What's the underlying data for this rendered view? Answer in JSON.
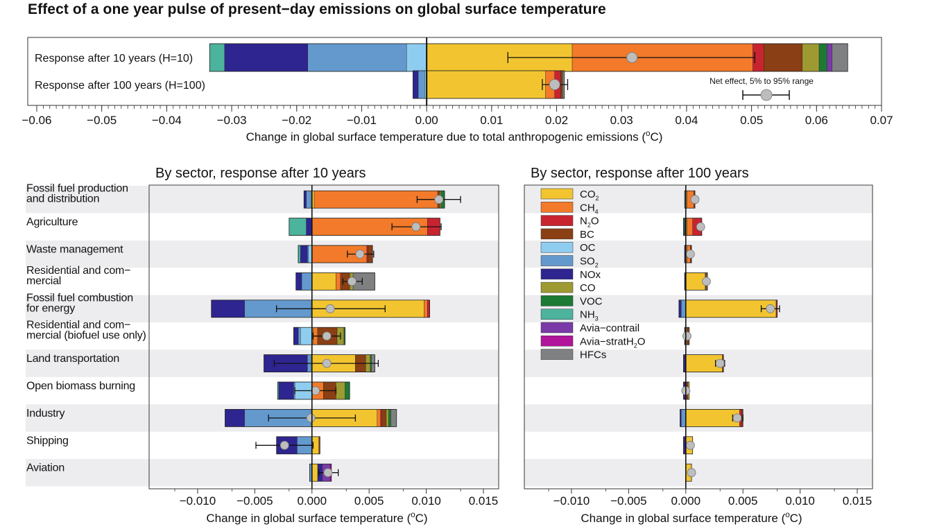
{
  "title": "Effect of a one year pulse of present−day emissions on global surface temperature",
  "colors": {
    "CO2": "#f2c530",
    "CH4": "#f27a2a",
    "N2O": "#c8242f",
    "BC": "#8a3f14",
    "OC": "#8fcdf0",
    "SO2": "#6399cd",
    "NOx": "#2e2590",
    "CO": "#9e9a32",
    "VOC": "#1c7a35",
    "NH3": "#4cb39d",
    "Avia-contrail": "#7a3aa8",
    "Avia-stratH2O": "#b0159a",
    "HFCs": "#7f8081",
    "band": "#ededf0",
    "marker": "#bdbdbd"
  },
  "chart_data": [
    {
      "type": "bar",
      "subtype": "stacked-horizontal",
      "title": "",
      "xlabel": "Change in global surface temperature due to total anthropogenic emissions (°C)",
      "xlim": [
        -0.06,
        0.07
      ],
      "xticks": [
        "−0.06",
        "−0.05",
        "−0.04",
        "−0.03",
        "−0.02",
        "−0.01",
        "0.00",
        "0.01",
        "0.02",
        "0.03",
        "0.04",
        "0.05",
        "0.06",
        "0.07"
      ],
      "xtick_values": [
        -0.06,
        -0.05,
        -0.04,
        -0.03,
        -0.02,
        -0.01,
        0,
        0.01,
        0.02,
        0.03,
        0.04,
        0.05,
        0.06,
        0.07
      ],
      "legend_note": "Net effect, 5% to 95% range",
      "rows": [
        {
          "label": "Response after 10 years (H=10)",
          "negative": [
            [
              "OC",
              0.0031
            ],
            [
              "SO2",
              0.0152
            ],
            [
              "NOx",
              0.0128
            ],
            [
              "NH3",
              0.0023
            ]
          ],
          "positive": [
            [
              "CO2",
              0.0224
            ],
            [
              "CH4",
              0.0278
            ],
            [
              "N2O",
              0.0017
            ],
            [
              "BC",
              0.0059
            ],
            [
              "CO",
              0.0026
            ],
            [
              "VOC",
              0.0012
            ],
            [
              "Avia-contrail",
              0.0008
            ],
            [
              "HFCs",
              0.0024
            ]
          ],
          "net": 0.0316,
          "range": [
            0.0125,
            0.0505
          ]
        },
        {
          "label": "Response after 100 years (H=100)",
          "negative": [
            [
              "OC",
              0.0003
            ],
            [
              "SO2",
              0.001
            ],
            [
              "NOx",
              0.0008
            ]
          ],
          "positive": [
            [
              "CO2",
              0.0183
            ],
            [
              "CH4",
              0.0014
            ],
            [
              "N2O",
              0.0009
            ],
            [
              "BC",
              0.0003
            ],
            [
              "HFCs",
              0.0003
            ]
          ],
          "net": 0.0197,
          "range": [
            0.0178,
            0.0217
          ]
        }
      ]
    },
    {
      "type": "bar",
      "subtype": "stacked-horizontal",
      "title": "By sector, response after 10 years",
      "xlabel": "Change in global surface temperature (°C)",
      "xlim": [
        -0.012,
        0.015
      ],
      "xticks": [
        "−0.010",
        "−0.005",
        "0.000",
        "0.005",
        "0.010",
        "0.015"
      ],
      "xtick_values": [
        -0.01,
        -0.005,
        0,
        0.005,
        0.01,
        0.015
      ],
      "rows": [
        {
          "label": "Fossil fuel production\nand distribution",
          "negative": [
            [
              "OC",
              0.0001
            ],
            [
              "SO2",
              0.0004
            ],
            [
              "NOx",
              0.0002
            ]
          ],
          "positive": [
            [
              "CO2",
              0.0002
            ],
            [
              "CH4",
              0.0108
            ],
            [
              "BC",
              0.0002
            ],
            [
              "CO",
              0.0001
            ],
            [
              "VOC",
              0.0003
            ]
          ],
          "net": 0.0111,
          "range": [
            0.0092,
            0.013
          ]
        },
        {
          "label": "Agriculture",
          "negative": [
            [
              "NOx",
              0.0005
            ],
            [
              "NH3",
              0.0015
            ]
          ],
          "positive": [
            [
              "CH4",
              0.0101
            ],
            [
              "N2O",
              0.0011
            ]
          ],
          "net": 0.0091,
          "range": [
            0.007,
            0.0113
          ]
        },
        {
          "label": "Waste management",
          "negative": [
            [
              "OC",
              0.0003
            ],
            [
              "SO2",
              0.0001
            ],
            [
              "NOx",
              0.0006
            ],
            [
              "NH3",
              0.0002
            ]
          ],
          "positive": [
            [
              "CH4",
              0.0048
            ],
            [
              "N2O",
              0.0001
            ],
            [
              "BC",
              0.0004
            ]
          ],
          "net": 0.0042,
          "range": [
            0.0031,
            0.0054
          ]
        },
        {
          "label": "Residential and com−\nmercial",
          "negative": [
            [
              "SO2",
              0.0009
            ],
            [
              "NOx",
              0.0005
            ]
          ],
          "positive": [
            [
              "CO2",
              0.0021
            ],
            [
              "CH4",
              0.0004
            ],
            [
              "BC",
              0.0008
            ],
            [
              "CO",
              0.0003
            ],
            [
              "HFCs",
              0.0019
            ]
          ],
          "net": 0.0035,
          "range": [
            0.0027,
            0.0044
          ]
        },
        {
          "label": "Fossil fuel combustion\nfor energy",
          "negative": [
            [
              "OC",
              0.0001
            ],
            [
              "SO2",
              0.0058
            ],
            [
              "NOx",
              0.0029
            ]
          ],
          "positive": [
            [
              "CO2",
              0.0098
            ],
            [
              "CH4",
              0.0003
            ],
            [
              "N2O",
              0.0002
            ]
          ],
          "net": 0.0016,
          "range": [
            -0.0031,
            0.0064
          ]
        },
        {
          "label": "Residential and com−\nmercial (biofuel use only)",
          "negative": [
            [
              "OC",
              0.001
            ],
            [
              "SO2",
              0.0002
            ],
            [
              "NOx",
              0.0004
            ]
          ],
          "positive": [
            [
              "CO2",
              0.0001
            ],
            [
              "CH4",
              0.0004
            ],
            [
              "BC",
              0.0017
            ],
            [
              "CO",
              0.0006
            ],
            [
              "VOC",
              0.0001
            ]
          ],
          "net": 0.0013,
          "range": [
            0.0001,
            0.0025
          ]
        },
        {
          "label": "Land transportation",
          "negative": [
            [
              "OC",
              0.0001
            ],
            [
              "SO2",
              0.0003
            ],
            [
              "NOx",
              0.0038
            ]
          ],
          "positive": [
            [
              "CO2",
              0.0038
            ],
            [
              "BC",
              0.0009
            ],
            [
              "CO",
              0.0004
            ],
            [
              "VOC",
              0.0001
            ],
            [
              "HFCs",
              0.0003
            ]
          ],
          "net": 0.0013,
          "range": [
            -0.0033,
            0.0058
          ]
        },
        {
          "label": "Open biomass burning",
          "negative": [
            [
              "OC",
              0.0015
            ],
            [
              "SO2",
              0.0001
            ],
            [
              "NOx",
              0.0013
            ],
            [
              "NH3",
              0.0001
            ]
          ],
          "positive": [
            [
              "CH4",
              0.001
            ],
            [
              "BC",
              0.0011
            ],
            [
              "CO",
              0.0008
            ],
            [
              "VOC",
              0.0004
            ]
          ],
          "net": 0.0003,
          "range": [
            -0.0015,
            0.0021
          ]
        },
        {
          "label": "Industry",
          "negative": [
            [
              "OC",
              0.0001
            ],
            [
              "SO2",
              0.0058
            ],
            [
              "NOx",
              0.0017
            ]
          ],
          "positive": [
            [
              "CO2",
              0.0057
            ],
            [
              "CH4",
              0.0003
            ],
            [
              "N2O",
              0.0001
            ],
            [
              "BC",
              0.0004
            ],
            [
              "CO",
              0.0002
            ],
            [
              "VOC",
              0.0002
            ],
            [
              "HFCs",
              0.0005
            ]
          ],
          "net": -0.0001,
          "range": [
            -0.0038,
            0.0038
          ]
        },
        {
          "label": "Shipping",
          "negative": [
            [
              "SO2",
              0.0013
            ],
            [
              "NOx",
              0.0018
            ]
          ],
          "positive": [
            [
              "CO2",
              0.0006
            ],
            [
              "BC",
              0.0001
            ]
          ],
          "net": -0.0024,
          "range": [
            -0.0049,
            0.0001
          ]
        },
        {
          "label": "Aviation",
          "negative": [
            [
              "SO2",
              0.0002
            ]
          ],
          "positive": [
            [
              "CO2",
              0.0005
            ],
            [
              "NOx",
              0.0004
            ],
            [
              "Avia-contrail",
              0.0007
            ],
            [
              "Avia-stratH2O",
              0.0001
            ]
          ],
          "net": 0.0014,
          "range": [
            0.0006,
            0.0023
          ]
        }
      ]
    },
    {
      "type": "bar",
      "subtype": "stacked-horizontal",
      "title": "By sector, response after 100 years",
      "xlabel": "Change in global surface temperature (°C)",
      "xlim": [
        -0.012,
        0.015
      ],
      "xticks": [
        "−0.010",
        "−0.005",
        "0.000",
        "0.005",
        "0.010",
        "0.015"
      ],
      "xtick_values": [
        -0.01,
        -0.005,
        0,
        0.005,
        0.01,
        0.015
      ],
      "legend": [
        {
          "key": "CO2",
          "label": "CO",
          "sub": "2"
        },
        {
          "key": "CH4",
          "label": "CH",
          "sub": "4"
        },
        {
          "key": "N2O",
          "label": "N",
          "sub": "2",
          "after": "O"
        },
        {
          "key": "BC",
          "label": "BC"
        },
        {
          "key": "OC",
          "label": "OC"
        },
        {
          "key": "SO2",
          "label": "SO",
          "sub": "2"
        },
        {
          "key": "NOx",
          "label": "NOx"
        },
        {
          "key": "CO",
          "label": "CO"
        },
        {
          "key": "VOC",
          "label": "VOC"
        },
        {
          "key": "NH3",
          "label": "NH",
          "sub": "3"
        },
        {
          "key": "Avia-contrail",
          "label": "Avia−contrail"
        },
        {
          "key": "Avia-stratH2O",
          "label": "Avia−stratH",
          "sub": "2",
          "after": "O"
        },
        {
          "key": "HFCs",
          "label": "HFCs"
        }
      ],
      "rows": [
        {
          "negative": [
            [
              "SO2",
              0.0001
            ]
          ],
          "positive": [
            [
              "CO2",
              0.0001
            ],
            [
              "CH4",
              0.0006
            ],
            [
              "BC",
              0.0001
            ]
          ],
          "net": 0.0008
        },
        {
          "negative": [
            [
              "NOx",
              0.0001
            ],
            [
              "VOC",
              0.0001
            ]
          ],
          "positive": [
            [
              "CO2",
              0.0001
            ],
            [
              "CH4",
              0.0005
            ],
            [
              "N2O",
              0.0008
            ]
          ],
          "net": 0.0013
        },
        {
          "negative": [
            [
              "NOx",
              0.0001
            ]
          ],
          "positive": [
            [
              "CO2",
              0.0001
            ],
            [
              "CH4",
              0.0003
            ],
            [
              "BC",
              0.0001
            ]
          ],
          "net": 0.0004
        },
        {
          "negative": [
            [
              "NOx",
              0.0001
            ]
          ],
          "positive": [
            [
              "CO2",
              0.0017
            ],
            [
              "BC",
              0.0001
            ],
            [
              "HFCs",
              0.0001
            ]
          ],
          "net": 0.0018
        },
        {
          "negative": [
            [
              "SO2",
              0.0004
            ],
            [
              "NOx",
              0.0002
            ]
          ],
          "positive": [
            [
              "CO2",
              0.0079
            ],
            [
              "N2O",
              0.0001
            ]
          ],
          "net": 0.0074,
          "range": [
            0.0066,
            0.0082
          ]
        },
        {
          "negative": [
            [
              "NOx",
              0.0001
            ]
          ],
          "positive": [
            [
              "CO2",
              0.0001
            ],
            [
              "BC",
              0.0002
            ]
          ],
          "net": 0.0001
        },
        {
          "negative": [
            [
              "NOx",
              0.0002
            ]
          ],
          "positive": [
            [
              "CO2",
              0.0032
            ],
            [
              "BC",
              0.0001
            ]
          ],
          "net": 0.003,
          "range": [
            0.0026,
            0.0034
          ]
        },
        {
          "negative": [
            [
              "NOx",
              0.0002
            ]
          ],
          "positive": [
            [
              "BC",
              0.0002
            ],
            [
              "CO2",
              0.0001
            ]
          ],
          "net": 0
        },
        {
          "negative": [
            [
              "SO2",
              0.0004
            ],
            [
              "NOx",
              0.0001
            ]
          ],
          "positive": [
            [
              "CO2",
              0.0047
            ],
            [
              "N2O",
              0.0002
            ],
            [
              "BC",
              0.0001
            ]
          ],
          "net": 0.0045,
          "range": [
            0.0041,
            0.005
          ]
        },
        {
          "negative": [
            [
              "NOx",
              0.0002
            ]
          ],
          "positive": [
            [
              "CO2",
              0.0006
            ]
          ],
          "net": 0.0004
        },
        {
          "negative": [],
          "positive": [
            [
              "CO2",
              0.0005
            ]
          ],
          "net": 0.0005
        }
      ]
    }
  ]
}
